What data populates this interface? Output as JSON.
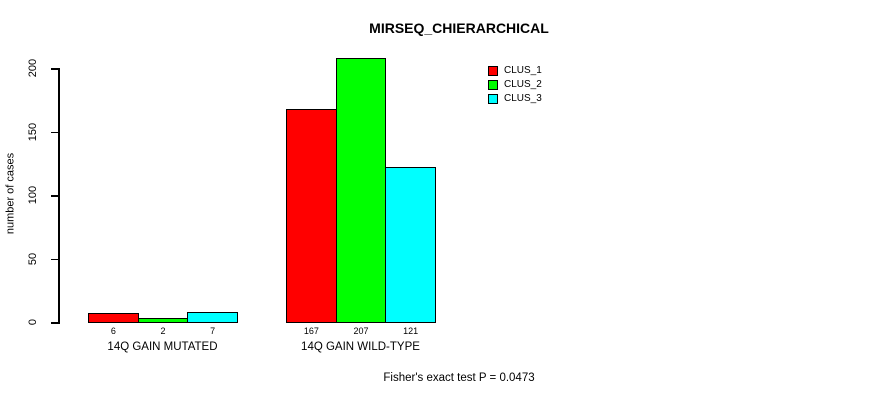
{
  "page": {
    "background": "#ffffff",
    "text_color": "#000000",
    "axis_color": "#000000"
  },
  "chart_data": {
    "type": "bar",
    "title": "MIRSEQ_CHIERARCHICAL",
    "ylabel": "number of cases",
    "xlabel": "",
    "categories": [
      "14Q GAIN MUTATED",
      "14Q GAIN WILD-TYPE"
    ],
    "series": [
      {
        "name": "CLUS_1",
        "color": "#ff0000",
        "values": [
          6,
          167
        ]
      },
      {
        "name": "CLUS_2",
        "color": "#00ff00",
        "values": [
          2,
          207
        ]
      },
      {
        "name": "CLUS_3",
        "color": "#00ffff",
        "values": [
          7,
          121
        ]
      }
    ],
    "yticks": [
      0,
      50,
      100,
      150,
      200
    ],
    "ylim": [
      0,
      207
    ],
    "grid": false,
    "show_bar_values": true,
    "legend_position": "upper-right",
    "legend_labels": [
      "CLUS_1",
      "CLUS_2",
      "CLUS_3"
    ],
    "annotation": "Fisher's exact test P = 0.0473"
  }
}
